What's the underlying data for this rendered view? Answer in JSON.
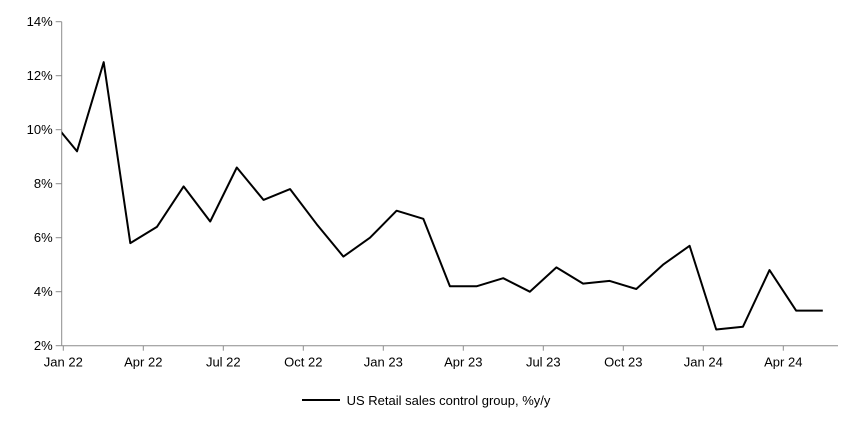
{
  "chart_data": {
    "type": "line",
    "title": "",
    "xlabel": "",
    "ylabel": "",
    "categories": [
      "Jan 22",
      "Feb 22",
      "Mar 22",
      "Apr 22",
      "May 22",
      "Jun 22",
      "Jul 22",
      "Aug 22",
      "Sep 22",
      "Oct 22",
      "Nov 22",
      "Dec 22",
      "Jan 23",
      "Feb 23",
      "Mar 23",
      "Apr 23",
      "May 23",
      "Jun 23",
      "Jul 23",
      "Aug 23",
      "Sep 23",
      "Oct 23",
      "Nov 23",
      "Dec 23",
      "Jan 24",
      "Feb 24",
      "Mar 24",
      "Apr 24",
      "May 24",
      "Jun 24"
    ],
    "series": [
      {
        "name": "US Retail sales control group, %y/y",
        "color": "#000000",
        "values": [
          10.4,
          9.2,
          12.5,
          5.8,
          6.4,
          7.9,
          6.6,
          8.6,
          7.4,
          7.8,
          6.5,
          5.3,
          6.0,
          7.0,
          6.7,
          4.2,
          4.2,
          4.5,
          4.0,
          4.9,
          4.3,
          4.4,
          4.1,
          5.0,
          5.7,
          2.6,
          2.7,
          4.8,
          3.3,
          3.3
        ]
      }
    ],
    "x_tick_labels": [
      "Jan 22",
      "Apr 22",
      "Jul 22",
      "Oct 22",
      "Jan 23",
      "Apr 23",
      "Jul 23",
      "Oct 23",
      "Jan 24",
      "Apr 24"
    ],
    "ylim": [
      2,
      14
    ],
    "y_tick_step": 2,
    "y_tick_suffix": "%",
    "grid": false,
    "legend_position": "bottom-center",
    "axis_color": "#8c8c8c",
    "note": "First data point (Jan 22) lies slightly left of the y-axis and is clipped; line enters plot at ~9.9%"
  },
  "legend": {
    "label": "US Retail sales control group, %y/y"
  }
}
